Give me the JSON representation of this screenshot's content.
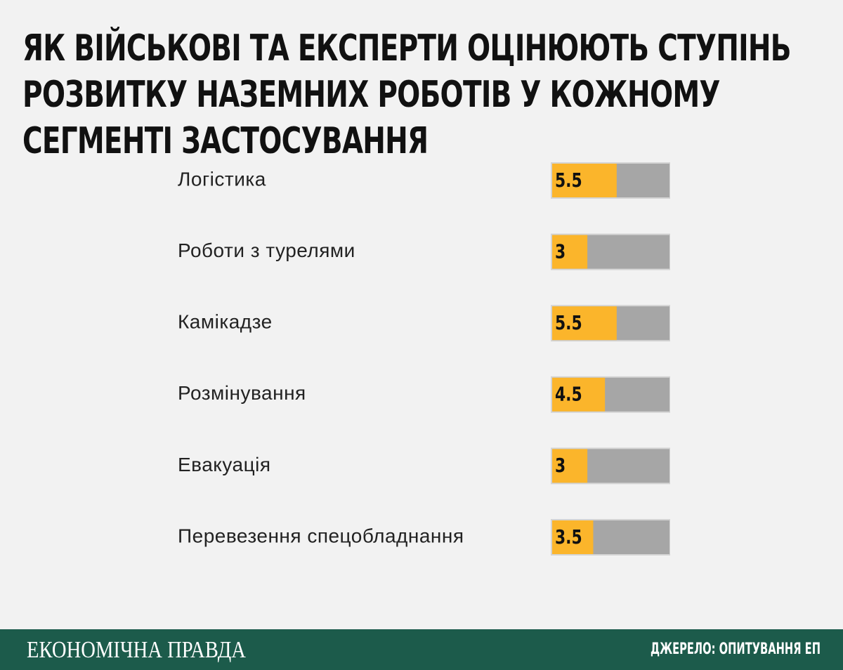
{
  "chart_data": {
    "type": "bar",
    "orientation": "horizontal",
    "title": "ЯК ВІЙСЬКОВІ ТА ЕКСПЕРТИ ОЦІНЮЮТЬ СТУПІНЬ РОЗВИТКУ НАЗЕМНИХ РОБОТІВ У КОЖНОМУ СЕГМЕНТІ ЗАСТОСУВАННЯ",
    "categories": [
      "Логістика",
      "Роботи з турелями",
      "Камікадзе",
      "Розмінування",
      "Евакуація",
      "Перевезення спецобладнання"
    ],
    "values": [
      5.5,
      3,
      5.5,
      4.5,
      3,
      3.5
    ],
    "color": "#fbb52b",
    "track_color": "#a6a6a6",
    "xlim": [
      0,
      10
    ]
  },
  "footer": {
    "logo": "ЕКОНОМІЧНА ПРАВДА",
    "source": "ДЖЕРЕЛО: ОПИТУВАННЯ ЕП"
  }
}
